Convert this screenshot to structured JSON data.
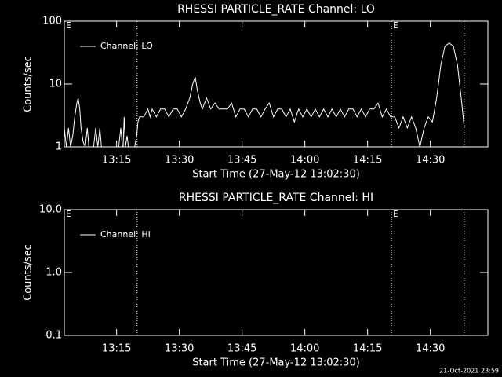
{
  "chart_data": [
    {
      "type": "line",
      "title": "RHESSI PARTICLE_RATE Channel: LO",
      "x_label": "Start Time (27-May-12 13:02:30)",
      "y_label": "Counts/sec",
      "log_y": true,
      "legend": "upper left",
      "xlim": [
        0,
        101.25
      ],
      "ylim": [
        1,
        100
      ],
      "xticks": [
        {
          "value": 12.5,
          "label": "13:15"
        },
        {
          "value": 27.5,
          "label": "13:30"
        },
        {
          "value": 42.5,
          "label": "13:45"
        },
        {
          "value": 57.5,
          "label": "14:00"
        },
        {
          "value": 72.5,
          "label": "14:15"
        },
        {
          "value": 87.5,
          "label": "14:30"
        }
      ],
      "yticks": [
        1,
        10,
        100
      ],
      "vlines": [
        17.4,
        78.2,
        95.6
      ],
      "annotations": [
        {
          "text": "E",
          "x": 0
        },
        {
          "text": "E",
          "x": 78.2
        }
      ],
      "x": [
        0,
        0.5,
        1,
        1.5,
        2,
        2.5,
        3,
        3.3,
        3.7,
        4,
        4.5,
        5,
        5.5,
        6,
        7,
        7.5,
        8,
        8.5,
        9,
        10,
        11,
        12,
        13,
        13.5,
        14,
        14.3,
        14.6,
        15,
        15.5,
        16.5,
        17.3,
        17.6,
        18,
        19,
        20,
        20.5,
        21,
        22,
        23,
        24,
        25,
        26,
        27,
        28,
        29,
        30,
        30.7,
        31.3,
        31.8,
        32.5,
        33,
        34,
        35,
        36,
        37,
        38,
        39,
        40,
        41,
        42,
        43,
        44,
        45,
        46,
        47,
        48,
        49,
        50,
        51,
        52,
        53,
        54,
        55,
        56,
        57,
        58,
        59,
        60,
        61,
        62,
        63,
        64,
        65,
        66,
        67,
        68,
        69,
        70,
        71,
        72,
        73,
        74,
        75,
        76,
        77,
        78,
        79,
        80,
        81,
        82,
        83,
        84,
        85,
        86,
        87,
        88,
        89,
        90,
        91,
        92,
        93,
        94,
        95,
        95.6
      ],
      "series": [
        {
          "name": "Channel: LO",
          "color": "#ffffff",
          "values": [
            2,
            1,
            2,
            1,
            1.5,
            3,
            5,
            6,
            4,
            2,
            1.2,
            1,
            2,
            0.8,
            1,
            2,
            1,
            2,
            0.8,
            0.8,
            0.8,
            0.8,
            1,
            2,
            0.8,
            3,
            1,
            1.5,
            0.8,
            0.8,
            1.5,
            2.5,
            3,
            3,
            4,
            3,
            4,
            3,
            4,
            4,
            3,
            4,
            4,
            3,
            4,
            6,
            10,
            13,
            8,
            5,
            4,
            6,
            4,
            5,
            4,
            4,
            4,
            5,
            3,
            4,
            4,
            3,
            4,
            4,
            3,
            4,
            5,
            3,
            4,
            4,
            3,
            4,
            2.5,
            4,
            3,
            4,
            3,
            4,
            3,
            4,
            3,
            4,
            3,
            4,
            3,
            4,
            4,
            3,
            4,
            3,
            4,
            4,
            5,
            3,
            4,
            3,
            3,
            2,
            3,
            2,
            3,
            2,
            1,
            2,
            3,
            2.5,
            6,
            20,
            40,
            45,
            40,
            20,
            5,
            2
          ]
        }
      ]
    },
    {
      "type": "line",
      "title": "RHESSI PARTICLE_RATE Channel: HI",
      "x_label": "Start Time (27-May-12 13:02:30)",
      "y_label": "Counts/sec",
      "log_y": true,
      "legend": "upper left",
      "xlim": [
        0,
        101.25
      ],
      "ylim": [
        0.1,
        10
      ],
      "xticks": [
        {
          "value": 12.5,
          "label": "13:15"
        },
        {
          "value": 27.5,
          "label": "13:30"
        },
        {
          "value": 42.5,
          "label": "13:45"
        },
        {
          "value": 57.5,
          "label": "14:00"
        },
        {
          "value": 72.5,
          "label": "14:15"
        },
        {
          "value": 87.5,
          "label": "14:30"
        }
      ],
      "yticks": [
        0.1,
        {
          "value": 1,
          "label": "1.0"
        },
        {
          "value": 10,
          "label": "10.0"
        }
      ],
      "vlines": [
        17.4,
        78.2,
        95.6
      ],
      "annotations": [
        {
          "text": "E",
          "x": 0
        },
        {
          "text": "E",
          "x": 78.2
        }
      ],
      "x": [],
      "series": [
        {
          "name": "Channel: HI",
          "color": "#ffffff",
          "values": []
        }
      ]
    }
  ],
  "timestamp": "21-Oct-2021 23:59"
}
